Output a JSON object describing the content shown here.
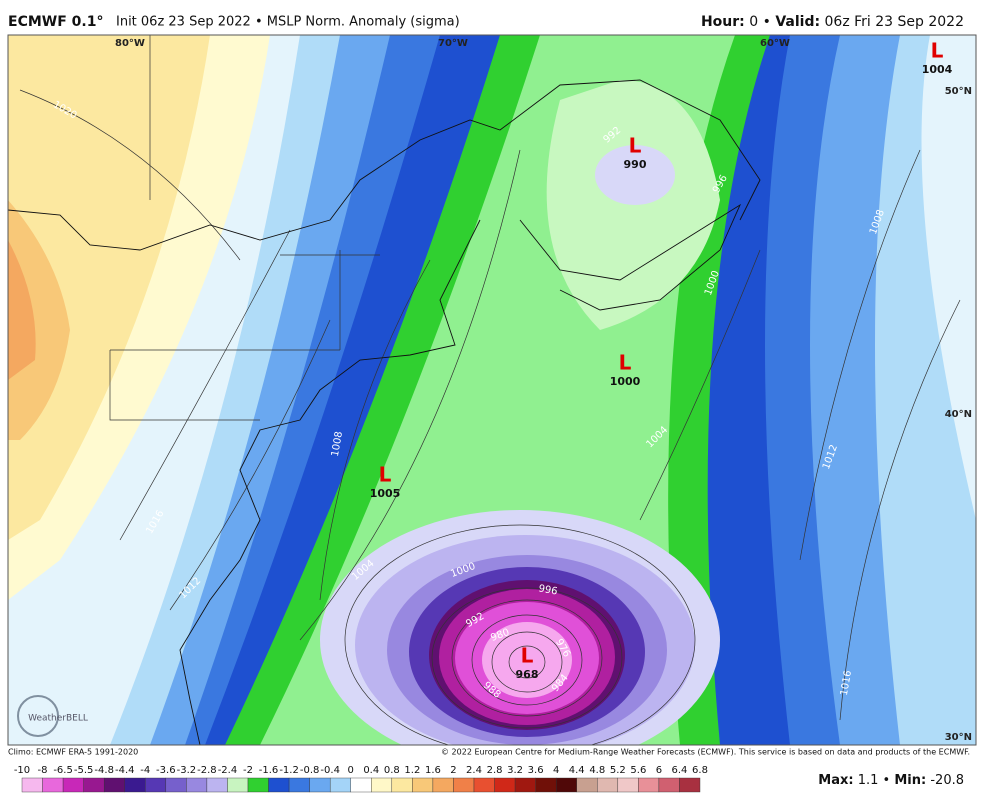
{
  "header": {
    "model": "ECMWF 0.1°",
    "subtitle": "Init 06z 23 Sep 2022 • MSLP Norm. Anomaly (sigma)",
    "hour_label": "Hour:",
    "hour": 0,
    "separator": "•",
    "valid_label": "Valid:",
    "valid": "06z Fri 23 Sep 2022"
  },
  "map": {
    "lon_labels": [
      "80°W",
      "70°W",
      "60°W"
    ],
    "lat_labels": [
      "50°N",
      "40°N",
      "30°N"
    ],
    "lows": [
      {
        "symbol": "L",
        "pressure": 1004
      },
      {
        "symbol": "L",
        "pressure": 990
      },
      {
        "symbol": "L",
        "pressure": 1000
      },
      {
        "symbol": "L",
        "pressure": 1005
      },
      {
        "symbol": "L",
        "pressure": 968
      }
    ],
    "isobar_labels": [
      1020,
      1016,
      1012,
      1008,
      1004,
      1000,
      996,
      992,
      988,
      984,
      980,
      976,
      992,
      996,
      1000,
      1004,
      1008,
      1012,
      1016
    ],
    "watermark": "WeatherBELL"
  },
  "footer": {
    "climo": "Climo: ECMWF ERA-5 1991-2020",
    "copyright": "© 2022 European Centre for Medium-Range Weather Forecasts (ECMWF). This service is based on data and products of the ECMWF."
  },
  "colorbar": {
    "ticks": [
      -10,
      -8,
      -6.5,
      -5.5,
      -4.8,
      -4.4,
      -4,
      -3.6,
      -3.2,
      -2.8,
      -2.4,
      -2,
      -1.6,
      -1.2,
      -0.8,
      -0.4,
      0,
      0.4,
      0.8,
      1.2,
      1.6,
      2,
      2.4,
      2.8,
      3.2,
      3.6,
      4,
      4.4,
      4.8,
      5.2,
      5.6,
      6,
      6.4,
      6.8
    ],
    "colors": [
      "#f6b8ee",
      "#e868dc",
      "#c828b8",
      "#981890",
      "#601070",
      "#3a1a90",
      "#5638b4",
      "#7660cc",
      "#9888e0",
      "#bcb4f0",
      "#c8f4c0",
      "#30d030",
      "#1e50d0",
      "#3a78e0",
      "#6aa8f0",
      "#a4d4f8",
      "#ffffff",
      "#fff8c8",
      "#fce8a0",
      "#f8c878",
      "#f4a860",
      "#f08048",
      "#e85030",
      "#d02818",
      "#a01810",
      "#701008",
      "#500808",
      "#c8a090",
      "#e0b8b0",
      "#f0c8c8",
      "#e89098",
      "#d06070",
      "#a83040"
    ]
  },
  "stats": {
    "max_label": "Max:",
    "max": 1.1,
    "separator": "•",
    "min_label": "Min:",
    "min": -20.8
  }
}
